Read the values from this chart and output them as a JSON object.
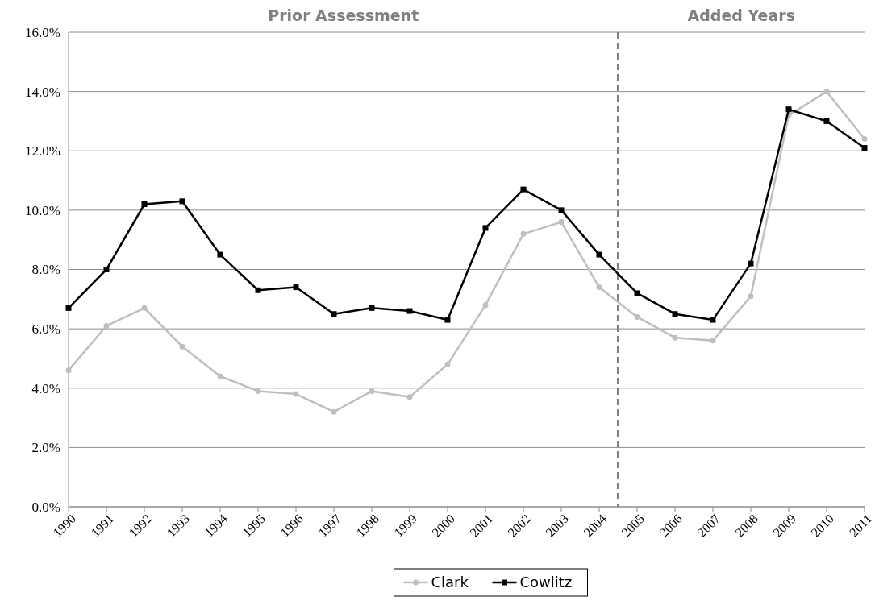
{
  "chart_data": {
    "type": "line",
    "x": [
      1990,
      1991,
      1992,
      1993,
      1994,
      1995,
      1996,
      1997,
      1998,
      1999,
      2000,
      2001,
      2002,
      2003,
      2004,
      2005,
      2006,
      2007,
      2008,
      2009,
      2010,
      2011
    ],
    "xlim": [
      1990,
      2011
    ],
    "xticks": [
      1990,
      1991,
      1992,
      1993,
      1994,
      1995,
      1996,
      1997,
      1998,
      1999,
      2000,
      2001,
      2002,
      2003,
      2004,
      2005,
      2006,
      2007,
      2008,
      2009,
      2010,
      2011
    ],
    "ylim": [
      0,
      16
    ],
    "yticks": [
      {
        "value": 0,
        "label": "0.0%"
      },
      {
        "value": 2,
        "label": "2.0%"
      },
      {
        "value": 4,
        "label": "4.0%"
      },
      {
        "value": 6,
        "label": "6.0%"
      },
      {
        "value": 8,
        "label": "8.0%"
      },
      {
        "value": 10,
        "label": "10.0%"
      },
      {
        "value": 12,
        "label": "12.0%"
      },
      {
        "value": 14,
        "label": "14.0%"
      },
      {
        "value": 16,
        "label": "16.0%"
      }
    ],
    "grid": "y",
    "legend": "bottom",
    "line_style": "solid",
    "series": [
      {
        "name": "Clark",
        "color": "#bfbfbf",
        "marker": "circle",
        "values": [
          4.6,
          6.1,
          6.7,
          5.4,
          4.4,
          3.9,
          3.8,
          3.2,
          3.9,
          3.7,
          4.8,
          6.8,
          9.2,
          9.6,
          7.4,
          6.4,
          5.7,
          5.6,
          7.1,
          13.2,
          14.0,
          12.4
        ]
      },
      {
        "name": "Cowlitz",
        "color": "#000000",
        "marker": "square",
        "values": [
          6.7,
          8.0,
          10.2,
          10.3,
          8.5,
          7.3,
          7.4,
          6.5,
          6.7,
          6.6,
          6.3,
          9.4,
          10.7,
          10.0,
          8.5,
          7.2,
          6.5,
          6.3,
          8.2,
          13.4,
          13.0,
          12.1
        ]
      }
    ],
    "ref_lines": [
      {
        "axis": "x",
        "value": 2004.5,
        "color": "#808080",
        "line_style": "dashed"
      }
    ],
    "annotations": [
      "Prior Assessment",
      "Added Years"
    ]
  }
}
